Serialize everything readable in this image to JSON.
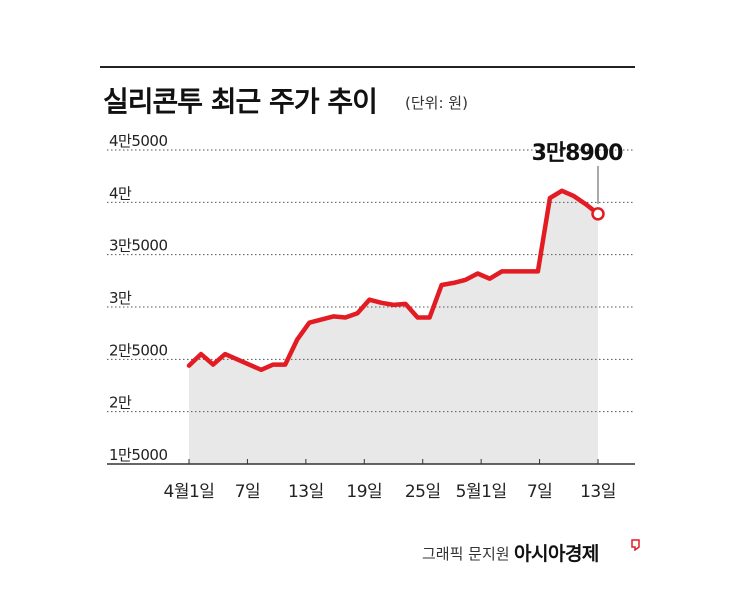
{
  "header": {
    "title": "실리콘투 최근 주가 추이",
    "unit": "(단위: 원)"
  },
  "footer": {
    "credit": "그래픽 문지원",
    "brand": "아시아경제"
  },
  "colors": {
    "line": "#e31b23",
    "area": "#e8e8e8",
    "grid": "#555555"
  },
  "chart_data": {
    "type": "area",
    "title": "실리콘투 최근 주가 추이",
    "ylabel": "(단위: 원)",
    "ylim": [
      15000,
      45000
    ],
    "y_ticks": [
      15000,
      20000,
      25000,
      30000,
      35000,
      40000,
      45000
    ],
    "y_tick_labels": [
      "1만5000",
      "2만",
      "2만5000",
      "3만",
      "3만5000",
      "4만",
      "4만5000"
    ],
    "x_ticks": [
      "4월1일",
      "7일",
      "13일",
      "19일",
      "25일",
      "5월1일",
      "7일",
      "13일"
    ],
    "series": [
      {
        "values": [
          24400,
          25500,
          24500,
          25500,
          25000,
          24500,
          24000,
          24500,
          24500,
          26900,
          28500,
          28800,
          29100,
          29000,
          29400,
          30700,
          30400,
          30200,
          30300,
          29000,
          29000,
          32100,
          32300,
          32600,
          33200,
          32700,
          33400,
          33400,
          33400,
          33400,
          40400,
          41100,
          40600,
          39800,
          38900
        ]
      }
    ],
    "annotation": {
      "text": "3만8900",
      "value": 38900
    }
  }
}
